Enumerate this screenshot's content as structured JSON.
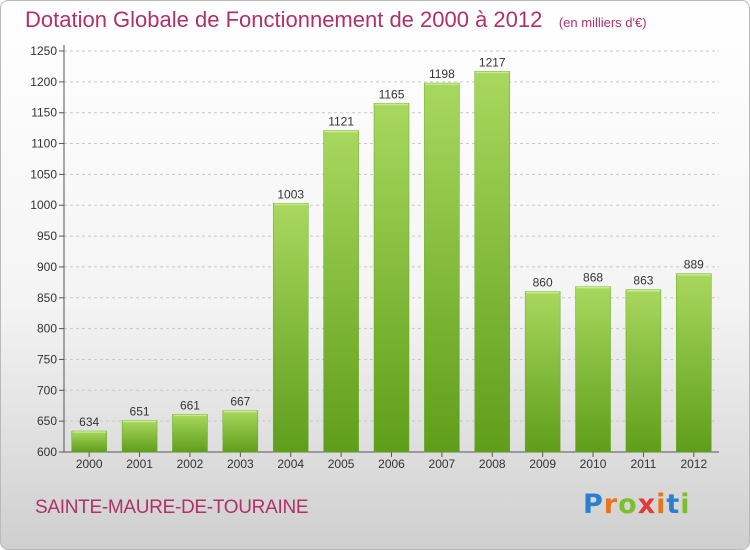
{
  "chart_data": {
    "type": "bar",
    "title": "Dotation Globale de Fonctionnement de 2000 à 2012",
    "subtitle": "(en milliers d'€)",
    "categories": [
      "2000",
      "2001",
      "2002",
      "2003",
      "2004",
      "2005",
      "2006",
      "2007",
      "2008",
      "2009",
      "2010",
      "2011",
      "2012"
    ],
    "values": [
      634,
      651,
      661,
      667,
      1003,
      1121,
      1165,
      1198,
      1217,
      860,
      868,
      863,
      889
    ],
    "ylim": [
      600,
      1250
    ],
    "yticks": [
      600,
      650,
      700,
      750,
      800,
      850,
      900,
      950,
      1000,
      1050,
      1100,
      1150,
      1200,
      1250
    ],
    "grid": true,
    "bar_color": "#7cb82f",
    "bar_color_light": "#a3d45a"
  },
  "footer": {
    "commune": "SAINTE-MAURE-DE-TOURAINE",
    "brand_letters": [
      "P",
      "r",
      "o",
      "x",
      "i",
      "t",
      "i"
    ]
  }
}
